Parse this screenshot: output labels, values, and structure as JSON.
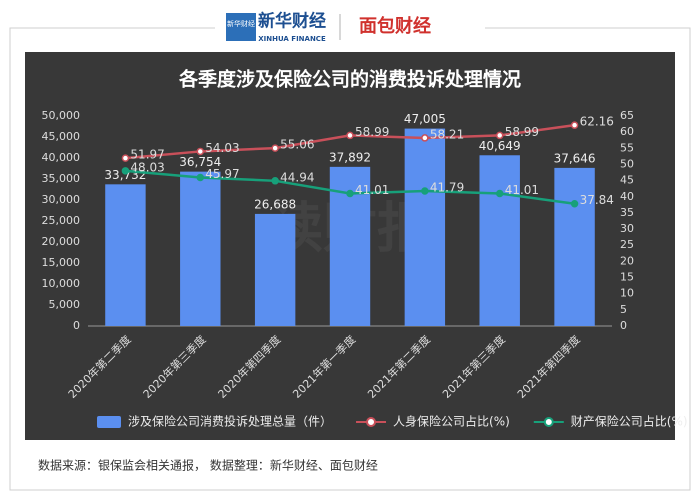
{
  "header": {
    "badge": "新华财经",
    "brand": "新华财经",
    "brand_en": "XINHUA FINANCE",
    "partner": "面包财经"
  },
  "source": "数据来源：银保监会相关通报， 数据整理：新华财经、面包财经",
  "chart_data": {
    "type": "bar",
    "title": "各季度涉及保险公司的消费投诉处理情况",
    "watermark": "读财报",
    "categories": [
      "2020年第二季度",
      "2020年第三季度",
      "2020年第四季度",
      "2021年第一季度",
      "2021年第二季度",
      "2021年第三季度",
      "2021年第四季度"
    ],
    "series": [
      {
        "name": "涉及保险公司消费投诉处理总量（件）",
        "type": "bar",
        "color": "#5b8ff0",
        "values": [
          33732,
          36754,
          26688,
          37892,
          47005,
          40649,
          37646
        ],
        "value_labels": [
          "33,732",
          "36,754",
          "26,688",
          "37,892",
          "47,005",
          "40,649",
          "37,646"
        ]
      },
      {
        "name": "人身保险公司占比(%)",
        "type": "line",
        "axis": "y2",
        "color": "#c9505a",
        "values": [
          51.97,
          54.03,
          55.06,
          58.99,
          58.21,
          58.99,
          62.16
        ]
      },
      {
        "name": "财产保险公司占比(%)",
        "type": "line",
        "axis": "y2",
        "color": "#17a07a",
        "values": [
          48.03,
          45.97,
          44.94,
          41.01,
          41.79,
          41.01,
          37.84
        ]
      }
    ],
    "ylim": [
      0,
      50000
    ],
    "yticks": [
      0,
      {
        "value": 5000,
        "label": "5,000"
      },
      {
        "value": 10000,
        "label": "10,000"
      },
      {
        "value": 15000,
        "label": "15,000"
      },
      {
        "value": 20000,
        "label": "20,000"
      },
      {
        "value": 25000,
        "label": "25,000"
      },
      {
        "value": 30000,
        "label": "30,000"
      },
      {
        "value": 35000,
        "label": "35,000"
      },
      {
        "value": 40000,
        "label": "40,000"
      },
      {
        "value": 45000,
        "label": "45,000"
      },
      {
        "value": 50000,
        "label": "50,000"
      }
    ],
    "y2lim": [
      0,
      65
    ],
    "y2ticks": [
      0,
      5,
      10,
      15,
      20,
      25,
      30,
      35,
      40,
      45,
      50,
      55,
      60,
      65
    ],
    "grid": false,
    "legend": "bottom"
  }
}
